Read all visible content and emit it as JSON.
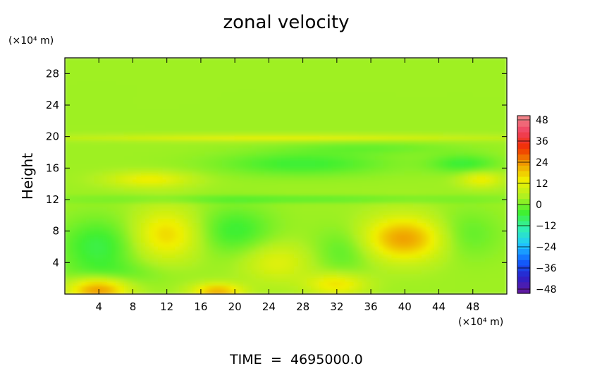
{
  "chart_data": {
    "type": "heatmap",
    "title": "zonal velocity",
    "ylabel": "Height",
    "y_unit": "(×10⁴ m)",
    "x_unit": "(×10⁴ m)",
    "x_ticks": [
      "4",
      "8",
      "12",
      "16",
      "20",
      "24",
      "28",
      "32",
      "36",
      "40",
      "44",
      "48"
    ],
    "y_ticks": [
      "4",
      "8",
      "12",
      "16",
      "20",
      "24",
      "28"
    ],
    "xlim": [
      0,
      52
    ],
    "ylim": [
      0,
      30
    ],
    "colorbar_ticks": [
      "48",
      "36",
      "24",
      "12",
      "0",
      "−12",
      "−24",
      "−36",
      "−48"
    ],
    "colorbar_range": [
      -48,
      48
    ],
    "colorbar_colors": [
      "#6a1a9a",
      "#2a20c8",
      "#1060ff",
      "#20c8ff",
      "#30f0b0",
      "#40f030",
      "#b0f020",
      "#f0f000",
      "#f0a000",
      "#f03000",
      "#f04060",
      "#f09090"
    ],
    "field": {
      "background_value": 3,
      "features": [
        {
          "x": 4,
          "y": 0.5,
          "rx": 3.5,
          "ry": 1.6,
          "v": 20
        },
        {
          "x": 18,
          "y": 0.3,
          "rx": 3,
          "ry": 1,
          "v": 17
        },
        {
          "x": 32,
          "y": 1.2,
          "rx": 3.5,
          "ry": 1.4,
          "v": 12
        },
        {
          "x": 4,
          "y": 6,
          "rx": 4.5,
          "ry": 3.5,
          "v": -9
        },
        {
          "x": 12,
          "y": 7.5,
          "rx": 4,
          "ry": 3.2,
          "v": 13
        },
        {
          "x": 20,
          "y": 8,
          "rx": 4.5,
          "ry": 3,
          "v": -8
        },
        {
          "x": 25,
          "y": 4,
          "rx": 4,
          "ry": 2.5,
          "v": 8
        },
        {
          "x": 33,
          "y": 5.5,
          "rx": 3.5,
          "ry": 3,
          "v": -6
        },
        {
          "x": 40,
          "y": 7,
          "rx": 5,
          "ry": 2.8,
          "v": 19
        },
        {
          "x": 47,
          "y": 7.5,
          "rx": 4,
          "ry": 3,
          "v": -6
        },
        {
          "x": 28,
          "y": 16.5,
          "rx": 10,
          "ry": 1.5,
          "v": -8
        },
        {
          "x": 47,
          "y": 16.5,
          "rx": 4,
          "ry": 1.2,
          "v": -8
        },
        {
          "x": 10,
          "y": 14.5,
          "rx": 5,
          "ry": 1,
          "v": 10
        },
        {
          "x": 49,
          "y": 14.5,
          "rx": 2.5,
          "ry": 1,
          "v": 10
        },
        {
          "x": 26,
          "y": 12,
          "rx": 26,
          "ry": 0.4,
          "v": -6
        },
        {
          "x": 26,
          "y": 19.8,
          "rx": 26,
          "ry": 0.4,
          "v": 9
        },
        {
          "x": 36,
          "y": 18.5,
          "rx": 10,
          "ry": 0.8,
          "v": -4
        },
        {
          "x": 6,
          "y": 2.5,
          "rx": 6,
          "ry": 1.5,
          "v": -4
        }
      ]
    }
  },
  "footer": {
    "label": "TIME",
    "equals": "=",
    "value": "4695000.0"
  }
}
